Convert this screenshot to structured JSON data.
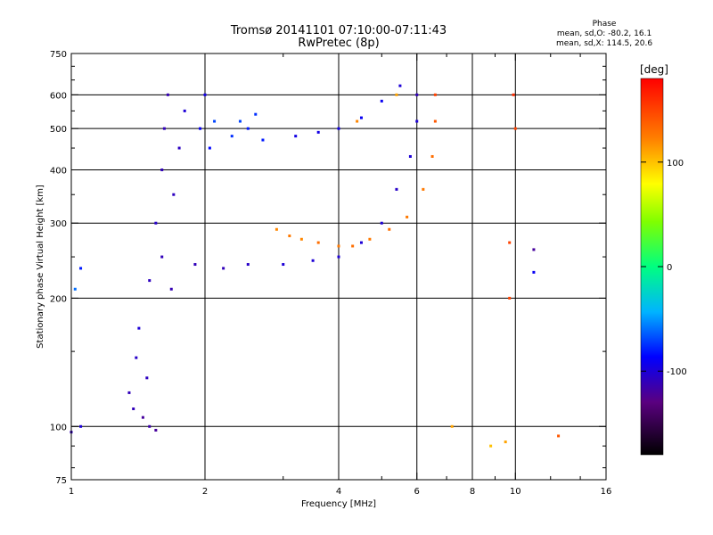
{
  "header": {
    "title": "Tromsø 20141101 07:10:00-07:11:43",
    "subtitle": "RwPretec (8p)"
  },
  "phase_info": {
    "heading": "Phase",
    "line_o": "mean, sd,O: -80.2, 16.1",
    "line_x": "mean, sd,X: 114.5, 20.6"
  },
  "colorbar": {
    "unit": "[deg]",
    "min": -180,
    "max": 180,
    "ticks": [
      {
        "value": 100,
        "label": "100"
      },
      {
        "value": 0,
        "label": "0"
      },
      {
        "value": -100,
        "label": "-100"
      }
    ]
  },
  "chart_data": {
    "type": "scatter",
    "xlabel": "Frequency [MHz]",
    "ylabel": "Stationary phase Virtual Height [km]",
    "xscale": "log",
    "yscale": "log",
    "xlim": [
      1,
      16
    ],
    "ylim": [
      75,
      750
    ],
    "xticks": [
      {
        "value": 1,
        "label": "1"
      },
      {
        "value": 2,
        "label": "2"
      },
      {
        "value": 4,
        "label": "4"
      },
      {
        "value": 6,
        "label": "6"
      },
      {
        "value": 8,
        "label": "8"
      },
      {
        "value": 10,
        "label": "10"
      },
      {
        "value": 16,
        "label": "16"
      }
    ],
    "yticks": [
      {
        "value": 75,
        "label": "75"
      },
      {
        "value": 100,
        "label": "100"
      },
      {
        "value": 200,
        "label": "200"
      },
      {
        "value": 300,
        "label": "300"
      },
      {
        "value": 400,
        "label": "400"
      },
      {
        "value": 500,
        "label": "500"
      },
      {
        "value": 600,
        "label": "600"
      },
      {
        "value": 750,
        "label": "750"
      }
    ],
    "x_minor_ticks": [
      3,
      5,
      7,
      9,
      12,
      14
    ],
    "y_minor_ticks": [
      80,
      90,
      150,
      250,
      350,
      450,
      550,
      650,
      700
    ],
    "grid": true,
    "series": [
      {
        "points": [
          [
            1.0,
            97,
            -110
          ],
          [
            1.05,
            100,
            -100
          ],
          [
            1.02,
            210,
            -60
          ],
          [
            1.05,
            235,
            -80
          ],
          [
            1.35,
            120,
            -110
          ],
          [
            1.4,
            145,
            -105
          ],
          [
            1.42,
            170,
            -100
          ],
          [
            1.45,
            105,
            -120
          ],
          [
            1.5,
            100,
            -115
          ],
          [
            1.38,
            110,
            -110
          ],
          [
            1.48,
            130,
            -108
          ],
          [
            1.55,
            98,
            -120
          ],
          [
            1.5,
            220,
            -108
          ],
          [
            1.55,
            300,
            -105
          ],
          [
            1.6,
            400,
            -110
          ],
          [
            1.62,
            500,
            -110
          ],
          [
            1.65,
            600,
            -112
          ],
          [
            1.6,
            250,
            -110
          ],
          [
            1.7,
            350,
            -108
          ],
          [
            1.75,
            450,
            -107
          ],
          [
            1.8,
            550,
            -100
          ],
          [
            1.68,
            210,
            -112
          ],
          [
            1.9,
            240,
            -110
          ],
          [
            1.95,
            500,
            -90
          ],
          [
            2.0,
            600,
            -95
          ],
          [
            2.05,
            450,
            -85
          ],
          [
            2.1,
            520,
            -70
          ],
          [
            2.3,
            480,
            -75
          ],
          [
            2.4,
            520,
            -70
          ],
          [
            2.5,
            500,
            -80
          ],
          [
            2.6,
            540,
            -75
          ],
          [
            2.7,
            470,
            -80
          ],
          [
            2.2,
            235,
            -110
          ],
          [
            2.5,
            240,
            -105
          ],
          [
            3.0,
            240,
            -100
          ],
          [
            3.5,
            245,
            -100
          ],
          [
            4.0,
            250,
            -100
          ],
          [
            4.5,
            270,
            -100
          ],
          [
            5.0,
            300,
            -100
          ],
          [
            5.4,
            360,
            -105
          ],
          [
            5.8,
            430,
            -100
          ],
          [
            6.0,
            520,
            -100
          ],
          [
            6.0,
            600,
            -110
          ],
          [
            3.2,
            480,
            -95
          ],
          [
            3.6,
            490,
            -95
          ],
          [
            4.0,
            500,
            -95
          ],
          [
            4.5,
            530,
            -90
          ],
          [
            5.0,
            580,
            -90
          ],
          [
            5.5,
            630,
            -100
          ]
        ]
      },
      {
        "points": [
          [
            2.9,
            290,
            120
          ],
          [
            3.1,
            280,
            125
          ],
          [
            3.3,
            275,
            120
          ],
          [
            3.6,
            270,
            130
          ],
          [
            4.0,
            265,
            125
          ],
          [
            4.3,
            265,
            130
          ],
          [
            4.7,
            275,
            125
          ],
          [
            5.2,
            290,
            130
          ],
          [
            5.7,
            310,
            125
          ],
          [
            6.2,
            360,
            125
          ],
          [
            6.5,
            430,
            130
          ],
          [
            6.6,
            520,
            140
          ],
          [
            6.6,
            600,
            150
          ],
          [
            4.4,
            520,
            120
          ],
          [
            5.4,
            600,
            110
          ]
        ]
      },
      {
        "points": [
          [
            7.2,
            100,
            110
          ],
          [
            8.8,
            90,
            100
          ],
          [
            9.5,
            92,
            110
          ],
          [
            9.7,
            200,
            150
          ],
          [
            9.7,
            270,
            150
          ],
          [
            10.0,
            500,
            150
          ],
          [
            9.9,
            600,
            160
          ],
          [
            11.0,
            230,
            -90
          ],
          [
            11.0,
            260,
            -120
          ],
          [
            12.5,
            95,
            140
          ]
        ]
      }
    ]
  }
}
